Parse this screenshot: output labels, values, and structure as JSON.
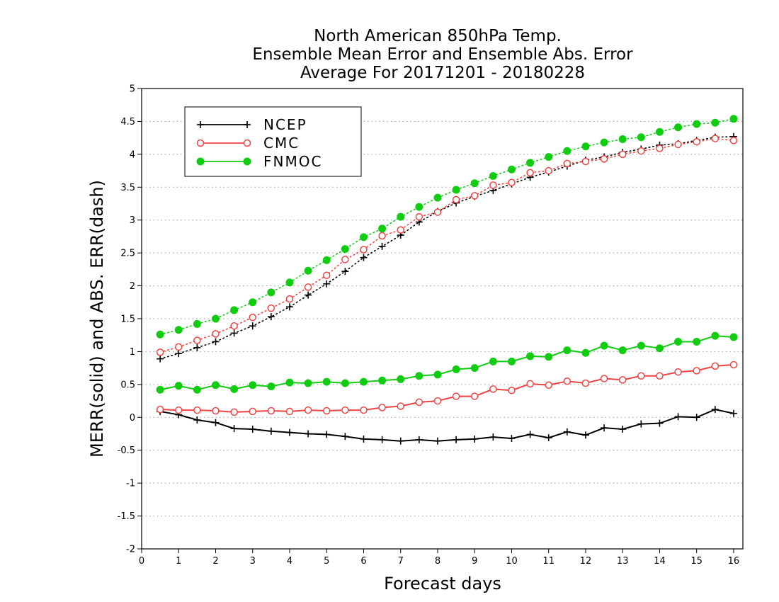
{
  "chart_data": {
    "type": "line",
    "title": [
      "North American 850hPa Temp.",
      "Ensemble Mean Error and Ensemble Abs. Error",
      "Average For 20171201 - 20180228"
    ],
    "xlabel": "Forecast days",
    "ylabel": "MERR(solid) and ABS. ERR(dash)",
    "xlim": [
      0,
      16.25
    ],
    "ylim": [
      -2,
      5
    ],
    "xticks": [
      0,
      1,
      2,
      3,
      4,
      5,
      6,
      7,
      8,
      9,
      10,
      11,
      12,
      13,
      14,
      15,
      16
    ],
    "yticks": [
      -2,
      -1.5,
      -1,
      -0.5,
      0,
      0.5,
      1,
      1.5,
      2,
      2.5,
      3,
      3.5,
      4,
      4.5,
      5
    ],
    "grid": "horizontal dotted",
    "legend_placement": "top-left",
    "x": [
      0.5,
      1,
      1.5,
      2,
      2.5,
      3,
      3.5,
      4,
      4.5,
      5,
      5.5,
      6,
      6.5,
      7,
      7.5,
      8,
      8.5,
      9,
      9.5,
      10,
      10.5,
      11,
      11.5,
      12,
      12.5,
      13,
      13.5,
      14,
      14.5,
      15,
      15.5,
      16
    ],
    "series": [
      {
        "name": "NCEP",
        "color": "#000000",
        "marker": "plus",
        "solid": [
          0.09,
          0.04,
          -0.04,
          -0.08,
          -0.17,
          -0.18,
          -0.21,
          -0.23,
          -0.25,
          -0.26,
          -0.29,
          -0.33,
          -0.34,
          -0.36,
          -0.34,
          -0.36,
          -0.34,
          -0.33,
          -0.3,
          -0.32,
          -0.26,
          -0.31,
          -0.22,
          -0.27,
          -0.16,
          -0.18,
          -0.1,
          -0.09,
          0.01,
          0.0,
          0.12,
          0.06
        ],
        "dash": [
          0.89,
          0.97,
          1.06,
          1.15,
          1.28,
          1.39,
          1.53,
          1.68,
          1.86,
          2.03,
          2.22,
          2.43,
          2.6,
          2.77,
          2.97,
          3.13,
          3.26,
          3.36,
          3.45,
          3.55,
          3.65,
          3.73,
          3.82,
          3.91,
          3.96,
          4.03,
          4.08,
          4.14,
          4.16,
          4.21,
          4.26,
          4.27
        ]
      },
      {
        "name": "CMC",
        "color": "#ee4444",
        "marker": "open-circle",
        "solid": [
          0.12,
          0.11,
          0.11,
          0.1,
          0.08,
          0.09,
          0.1,
          0.09,
          0.11,
          0.1,
          0.11,
          0.11,
          0.15,
          0.17,
          0.23,
          0.25,
          0.32,
          0.32,
          0.43,
          0.41,
          0.51,
          0.49,
          0.55,
          0.52,
          0.59,
          0.57,
          0.63,
          0.63,
          0.69,
          0.71,
          0.78,
          0.8
        ],
        "dash": [
          0.99,
          1.07,
          1.17,
          1.27,
          1.39,
          1.52,
          1.66,
          1.8,
          1.98,
          2.16,
          2.4,
          2.55,
          2.76,
          2.85,
          3.05,
          3.12,
          3.31,
          3.37,
          3.53,
          3.57,
          3.72,
          3.75,
          3.86,
          3.89,
          3.93,
          4.0,
          4.05,
          4.09,
          4.15,
          4.19,
          4.24,
          4.21
        ]
      },
      {
        "name": "FNMOC",
        "color": "#11cc11",
        "marker": "filled-circle",
        "solid": [
          0.42,
          0.48,
          0.42,
          0.49,
          0.43,
          0.49,
          0.47,
          0.53,
          0.52,
          0.54,
          0.52,
          0.54,
          0.56,
          0.58,
          0.63,
          0.65,
          0.73,
          0.75,
          0.85,
          0.85,
          0.93,
          0.92,
          1.02,
          0.98,
          1.09,
          1.02,
          1.09,
          1.05,
          1.15,
          1.15,
          1.24,
          1.22
        ],
        "dash": [
          1.26,
          1.33,
          1.42,
          1.5,
          1.63,
          1.75,
          1.9,
          2.05,
          2.23,
          2.39,
          2.56,
          2.74,
          2.87,
          3.05,
          3.2,
          3.34,
          3.46,
          3.56,
          3.67,
          3.77,
          3.87,
          3.96,
          4.05,
          4.12,
          4.18,
          4.23,
          4.26,
          4.34,
          4.41,
          4.46,
          4.48,
          4.54
        ]
      }
    ]
  }
}
